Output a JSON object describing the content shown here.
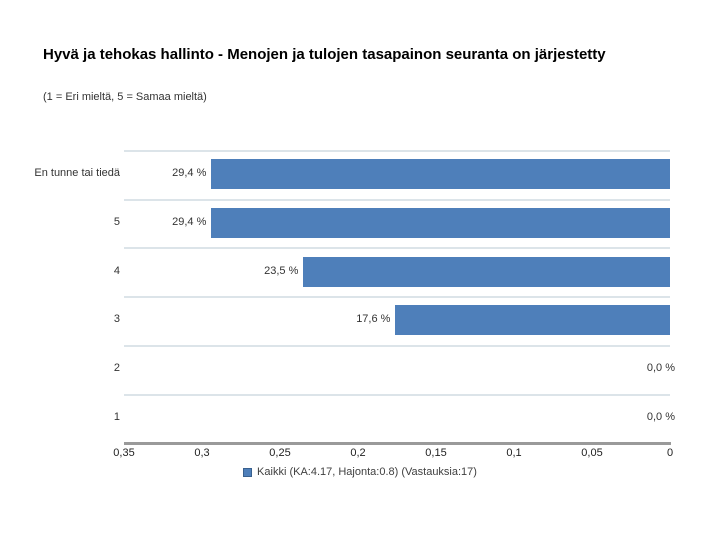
{
  "chart_data": {
    "type": "bar",
    "orientation": "horizontal",
    "title": "Hyvä ja tehokas hallinto - Menojen ja tulojen tasapainon seuranta on järjestetty",
    "subtitle": "(1 = Eri mieltä, 5 = Samaa mieltä)",
    "categories": [
      "En tunne tai tiedä",
      "5",
      "4",
      "3",
      "2",
      "1"
    ],
    "values": [
      0.294,
      0.294,
      0.235,
      0.176,
      0.0,
      0.0
    ],
    "value_labels": [
      "29,4 %",
      "29,4 %",
      "23,5 %",
      "17,6 %",
      "0,0 %",
      "0,0 %"
    ],
    "x_axis": {
      "ticks": [
        "0,35",
        "0,3",
        "0,25",
        "0,2",
        "0,15",
        "0,1",
        "0,05",
        "0"
      ],
      "min": 0,
      "max": 0.35,
      "reversed": true
    },
    "legend": {
      "label": "Kaikki (KA:4.17, Hajonta:0.8) (Vastauksia:17)",
      "position": "bottom"
    },
    "colors": {
      "bar": "#4e7fba",
      "legend_marker": "#4e7fba",
      "legend_marker_border": "#39618f",
      "gridline": "#dce4e9",
      "axis_line": "#9a9a9a"
    },
    "grid": true
  }
}
